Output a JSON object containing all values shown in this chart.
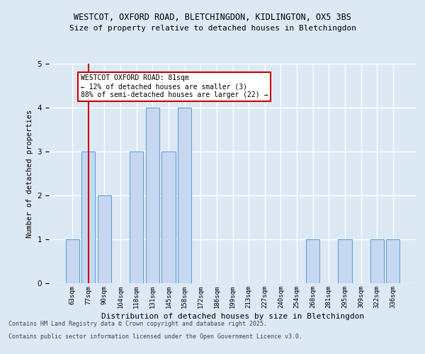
{
  "title1": "WESTCOT, OXFORD ROAD, BLETCHINGDON, KIDLINGTON, OX5 3BS",
  "title2": "Size of property relative to detached houses in Bletchingdon",
  "xlabel": "Distribution of detached houses by size in Bletchingdon",
  "ylabel": "Number of detached properties",
  "categories": [
    "63sqm",
    "77sqm",
    "90sqm",
    "104sqm",
    "118sqm",
    "131sqm",
    "145sqm",
    "158sqm",
    "172sqm",
    "186sqm",
    "199sqm",
    "213sqm",
    "227sqm",
    "240sqm",
    "254sqm",
    "268sqm",
    "281sqm",
    "295sqm",
    "309sqm",
    "322sqm",
    "336sqm"
  ],
  "values": [
    1,
    3,
    2,
    0,
    3,
    4,
    3,
    4,
    0,
    0,
    0,
    0,
    0,
    0,
    0,
    1,
    0,
    1,
    0,
    1,
    1
  ],
  "bar_color": "#c5d8f0",
  "bar_edge_color": "#5a9bd5",
  "highlight_index": 1,
  "highlight_line_color": "#cc0000",
  "ylim": [
    0,
    5
  ],
  "yticks": [
    0,
    1,
    2,
    3,
    4,
    5
  ],
  "annotation_text": "WESTCOT OXFORD ROAD: 81sqm\n← 12% of detached houses are smaller (3)\n88% of semi-detached houses are larger (22) →",
  "annotation_box_color": "#ffffff",
  "annotation_box_edge": "#cc0000",
  "footer1": "Contains HM Land Registry data © Crown copyright and database right 2025.",
  "footer2": "Contains public sector information licensed under the Open Government Licence v3.0.",
  "background_color": "#dde8f5",
  "plot_bg_color": "#dde8f5"
}
